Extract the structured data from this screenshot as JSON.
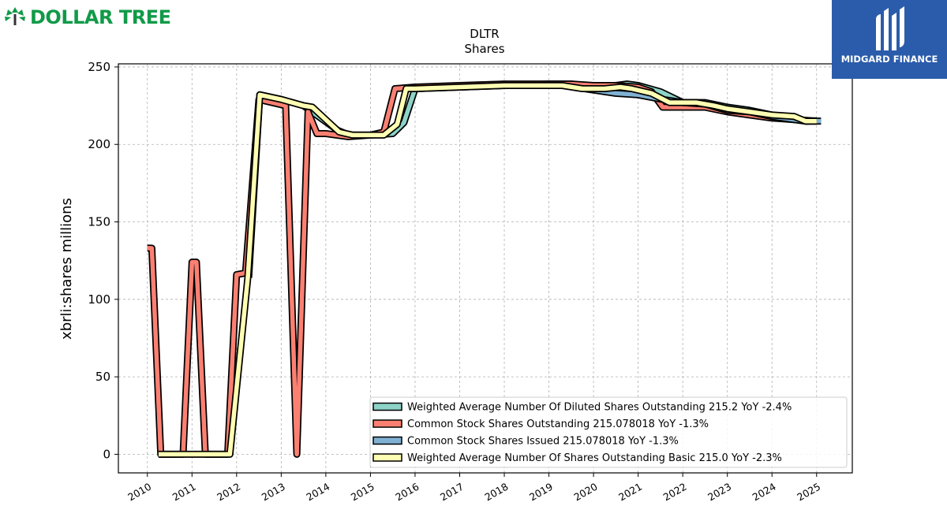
{
  "header": {
    "brand_name": "DOLLAR TREE",
    "brand_color": "#119a48",
    "publisher_name": "MIDGARD FINANCE",
    "publisher_color": "#2b5cab"
  },
  "chart_data": {
    "type": "line",
    "title": "DLTR",
    "subtitle": "Shares",
    "ylabel": "xbrli:shares millions",
    "xlabel": "",
    "xlim": [
      2009.35,
      2025.8
    ],
    "ylim": [
      -12,
      252
    ],
    "yticks": [
      0,
      50,
      100,
      150,
      200,
      250
    ],
    "xticks": [
      "2010",
      "2011",
      "2012",
      "2013",
      "2014",
      "2015",
      "2016",
      "2017",
      "2018",
      "2019",
      "2020",
      "2021",
      "2022",
      "2023",
      "2024",
      "2025"
    ],
    "grid": true,
    "legend_position": "bottom-right",
    "series": [
      {
        "name": "Weighted Average Number Of Diluted Shares Outstanding  215.2 YoY -2.4%",
        "color": "#8dd3c7",
        "x": [
          2012.27,
          2012.52,
          2013.0,
          2013.5,
          2014.27,
          2014.52,
          2015.0,
          2015.5,
          2015.75,
          2016.0,
          2017.0,
          2018.0,
          2019.0,
          2019.5,
          2020.0,
          2020.5,
          2020.75,
          2021.0,
          2021.5,
          2022.0,
          2022.5,
          2023.0,
          2023.5,
          2024.0,
          2024.5,
          2024.75,
          2025.0
        ],
        "values": [
          114,
          232,
          229,
          225,
          209,
          206,
          206,
          207,
          214,
          236,
          237,
          238,
          239,
          239,
          237,
          238,
          239,
          238,
          234,
          227,
          227,
          224,
          222,
          219,
          217,
          215,
          215.2
        ]
      },
      {
        "name": "Common Stock Shares Outstanding  215.078018 YoY -1.3%",
        "color": "#fb8072",
        "x": [
          2010.0,
          2010.1,
          2010.3,
          2010.8,
          2011.0,
          2011.1,
          2011.3,
          2011.8,
          2012.0,
          2012.2,
          2012.5,
          2013.1,
          2013.35,
          2013.6,
          2013.8,
          2014.0,
          2014.5,
          2015.0,
          2015.3,
          2015.55,
          2016.0,
          2017.0,
          2018.0,
          2019.0,
          2019.5,
          2020.0,
          2020.5,
          2021.0,
          2021.3,
          2021.55,
          2022.0,
          2022.5,
          2023.0,
          2023.5,
          2024.0,
          2024.5,
          2025.0
        ],
        "values": [
          133,
          133,
          0,
          0,
          124,
          124,
          0,
          0,
          116,
          117,
          229,
          225,
          0,
          221,
          207,
          207,
          205,
          206,
          208,
          236,
          237,
          238,
          239,
          239,
          239,
          238,
          238,
          237,
          234,
          224,
          224,
          224,
          221,
          219,
          217,
          216,
          215.078018
        ]
      },
      {
        "name": "Common Stock Shares Issued  215.078018 YoY -1.3%",
        "color": "#80b1d3",
        "x": [
          2019.8,
          2020.5,
          2021.0,
          2021.55,
          2022.0,
          2022.5,
          2023.0,
          2023.5,
          2024.0,
          2024.5,
          2024.75,
          2025.1
        ],
        "values": [
          236,
          233,
          232,
          229,
          227,
          226,
          222,
          221,
          218,
          216,
          215,
          215.078018
        ]
      },
      {
        "name": "Weighted Average Number Of Shares Outstanding Basic  215.0 YoY -2.3%",
        "color": "#ffffb3",
        "x": [
          2010.25,
          2011.85,
          2012.25,
          2012.52,
          2013.0,
          2013.5,
          2013.7,
          2014.3,
          2014.6,
          2015.0,
          2015.3,
          2015.6,
          2015.8,
          2016.0,
          2017.0,
          2018.0,
          2019.0,
          2019.3,
          2019.75,
          2020.25,
          2020.6,
          2020.85,
          2021.3,
          2021.7,
          2022.0,
          2022.3,
          2022.7,
          2023.0,
          2023.5,
          2024.0,
          2024.5,
          2024.75,
          2025.0
        ],
        "values": [
          0,
          0,
          114,
          232,
          229,
          225,
          224,
          208,
          206,
          206,
          206,
          213,
          236,
          236,
          237,
          238,
          238,
          238,
          236,
          236,
          237,
          236,
          233,
          227,
          227,
          227,
          225,
          223,
          221,
          219,
          218,
          215,
          215.0
        ]
      }
    ]
  }
}
